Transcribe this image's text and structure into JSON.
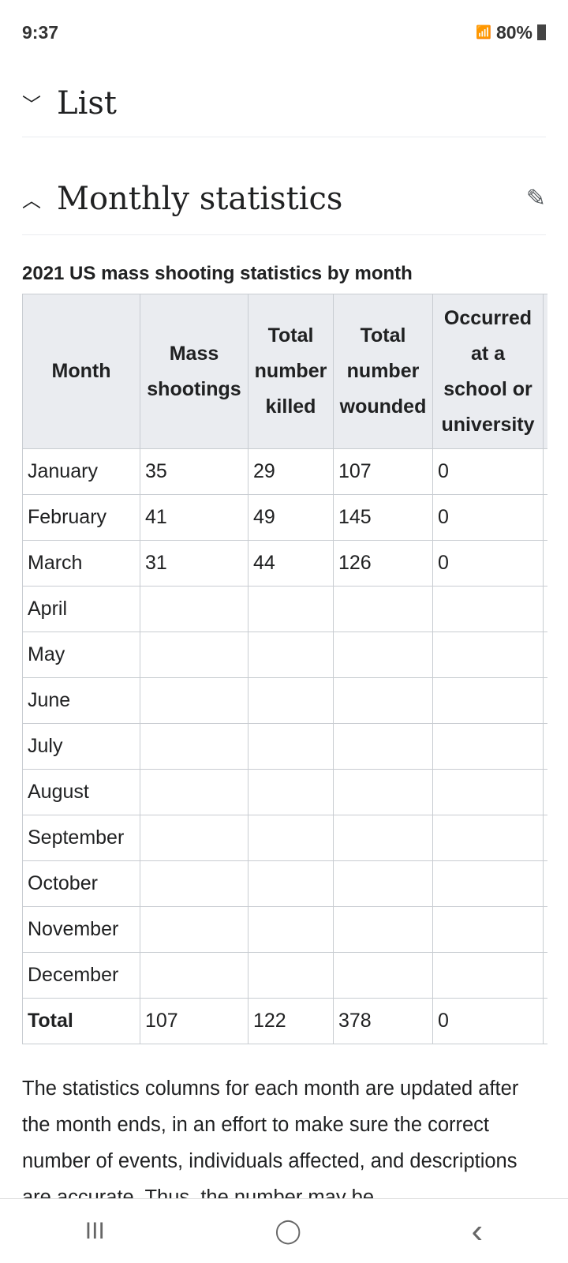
{
  "status_bar": {
    "time": "9:37",
    "battery": "80%",
    "icons": [
      "wifi-icon",
      "signal-icon",
      "battery-icon"
    ]
  },
  "sections": [
    {
      "title": "List",
      "state": "collapsed"
    },
    {
      "title": "Monthly statistics",
      "state": "expanded"
    }
  ],
  "table": {
    "caption": "2021 US mass shooting statistics by month",
    "headers": [
      "Month",
      "Mass shootings",
      "Total number killed",
      "Total number wounded",
      "Occurred at a school or university"
    ],
    "rows": [
      [
        "January",
        "35",
        "29",
        "107",
        "0"
      ],
      [
        "February",
        "41",
        "49",
        "145",
        "0"
      ],
      [
        "March",
        "31",
        "44",
        "126",
        "0"
      ],
      [
        "April",
        "",
        "",
        "",
        ""
      ],
      [
        "May",
        "",
        "",
        "",
        ""
      ],
      [
        "June",
        "",
        "",
        "",
        ""
      ],
      [
        "July",
        "",
        "",
        "",
        ""
      ],
      [
        "August",
        "",
        "",
        "",
        ""
      ],
      [
        "September",
        "",
        "",
        "",
        ""
      ],
      [
        "October",
        "",
        "",
        "",
        ""
      ],
      [
        "November",
        "",
        "",
        "",
        ""
      ],
      [
        "December",
        "",
        "",
        "",
        ""
      ],
      [
        "Total",
        "107",
        "122",
        "378",
        "0"
      ]
    ]
  },
  "paragraph": "The statistics columns for each month are updated after the month ends, in an effort to make sure the correct number of events, individuals affected, and descriptions are accurate. Thus, the number may be",
  "nav": {
    "recent": "III",
    "home": "◯",
    "back": "‹"
  }
}
